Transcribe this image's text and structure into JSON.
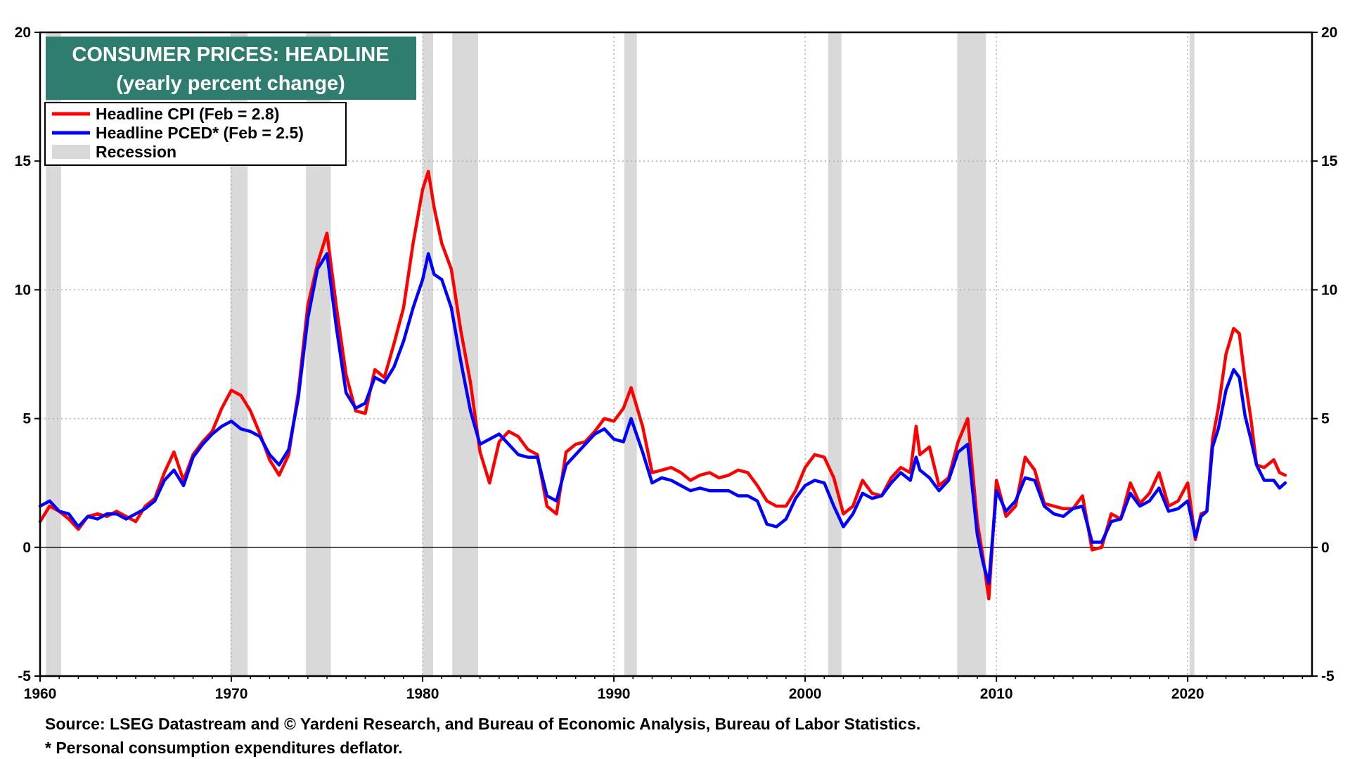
{
  "chart_data": {
    "type": "line",
    "title": "CONSUMER PRICES: HEADLINE",
    "subtitle": "(yearly percent change)",
    "xlim": [
      1960,
      2026.5
    ],
    "ylim": [
      -5,
      20
    ],
    "y_ticks": [
      -5,
      0,
      5,
      10,
      15,
      20
    ],
    "y_tick_labels": [
      "-5",
      "0",
      "5",
      "10",
      "15",
      "20"
    ],
    "x_ticks": [
      1960,
      1970,
      1980,
      1990,
      2000,
      2010,
      2020
    ],
    "x_tick_labels": [
      "1960",
      "1970",
      "1980",
      "1990",
      "2000",
      "2010",
      "2020"
    ],
    "grid": true,
    "zero_line": true,
    "legend_position": "top-left",
    "legend": [
      {
        "label": "Headline CPI (Feb = 2.8)",
        "color": "#ff0000",
        "kind": "line"
      },
      {
        "label": "Headline PCED* (Feb = 2.5)",
        "color": "#0000ff",
        "kind": "line"
      },
      {
        "label": "Recession",
        "color": "#d9d9d9",
        "kind": "patch"
      }
    ],
    "recessions": [
      [
        1960.3,
        1961.1
      ],
      [
        1969.95,
        1970.85
      ],
      [
        1973.9,
        1975.2
      ],
      [
        1980.0,
        1980.55
      ],
      [
        1981.55,
        1982.9
      ],
      [
        1990.55,
        1991.2
      ],
      [
        2001.2,
        2001.9
      ],
      [
        2007.95,
        2009.45
      ],
      [
        2020.1,
        2020.35
      ]
    ],
    "series": [
      {
        "name": "Headline CPI",
        "color": "#ff0000",
        "x": [
          1960.0,
          1960.5,
          1961.0,
          1961.5,
          1962.0,
          1962.5,
          1963.0,
          1963.5,
          1964.0,
          1964.5,
          1965.0,
          1965.5,
          1966.0,
          1966.5,
          1967.0,
          1967.5,
          1968.0,
          1968.5,
          1969.0,
          1969.5,
          1970.0,
          1970.5,
          1971.0,
          1971.5,
          1972.0,
          1972.5,
          1973.0,
          1973.5,
          1974.0,
          1974.5,
          1975.0,
          1975.5,
          1976.0,
          1976.5,
          1977.0,
          1977.5,
          1978.0,
          1978.5,
          1979.0,
          1979.5,
          1980.0,
          1980.3,
          1980.6,
          1981.0,
          1981.5,
          1982.0,
          1982.5,
          1983.0,
          1983.5,
          1984.0,
          1984.5,
          1985.0,
          1985.5,
          1986.0,
          1986.5,
          1987.0,
          1987.5,
          1988.0,
          1988.5,
          1989.0,
          1989.5,
          1990.0,
          1990.5,
          1990.9,
          1991.5,
          1992.0,
          1992.5,
          1993.0,
          1993.5,
          1994.0,
          1994.5,
          1995.0,
          1995.5,
          1996.0,
          1996.5,
          1997.0,
          1997.5,
          1998.0,
          1998.5,
          1999.0,
          1999.5,
          2000.0,
          2000.5,
          2001.0,
          2001.5,
          2002.0,
          2002.5,
          2003.0,
          2003.5,
          2004.0,
          2004.5,
          2005.0,
          2005.5,
          2005.8,
          2006.0,
          2006.5,
          2007.0,
          2007.5,
          2008.0,
          2008.5,
          2009.0,
          2009.3,
          2009.6,
          2010.0,
          2010.5,
          2011.0,
          2011.5,
          2012.0,
          2012.5,
          2013.0,
          2013.5,
          2014.0,
          2014.5,
          2015.0,
          2015.5,
          2016.0,
          2016.5,
          2017.0,
          2017.5,
          2018.0,
          2018.5,
          2019.0,
          2019.5,
          2020.0,
          2020.4,
          2020.7,
          2021.0,
          2021.3,
          2021.6,
          2022.0,
          2022.4,
          2022.7,
          2023.0,
          2023.3,
          2023.6,
          2024.0,
          2024.5,
          2024.8,
          2025.1
        ],
        "y": [
          1.0,
          1.6,
          1.4,
          1.1,
          0.7,
          1.2,
          1.3,
          1.2,
          1.4,
          1.2,
          1.0,
          1.6,
          1.9,
          2.9,
          3.7,
          2.6,
          3.6,
          4.1,
          4.5,
          5.4,
          6.1,
          5.9,
          5.3,
          4.4,
          3.4,
          2.8,
          3.6,
          6.0,
          9.4,
          11.0,
          12.2,
          9.3,
          6.7,
          5.3,
          5.2,
          6.9,
          6.6,
          7.9,
          9.3,
          11.8,
          13.9,
          14.6,
          13.2,
          11.8,
          10.8,
          8.4,
          6.4,
          3.7,
          2.5,
          4.1,
          4.5,
          4.3,
          3.8,
          3.6,
          1.6,
          1.3,
          3.7,
          4.0,
          4.1,
          4.5,
          5.0,
          4.9,
          5.4,
          6.2,
          4.7,
          2.9,
          3.0,
          3.1,
          2.9,
          2.6,
          2.8,
          2.9,
          2.7,
          2.8,
          3.0,
          2.9,
          2.4,
          1.8,
          1.6,
          1.6,
          2.2,
          3.1,
          3.6,
          3.5,
          2.7,
          1.3,
          1.6,
          2.6,
          2.1,
          2.0,
          2.7,
          3.1,
          2.9,
          4.7,
          3.6,
          3.9,
          2.4,
          2.7,
          4.1,
          5.0,
          1.0,
          -0.4,
          -2.0,
          2.6,
          1.2,
          1.6,
          3.5,
          3.0,
          1.7,
          1.6,
          1.5,
          1.5,
          2.0,
          -0.1,
          0.0,
          1.3,
          1.1,
          2.5,
          1.7,
          2.1,
          2.9,
          1.6,
          1.8,
          2.5,
          0.3,
          1.3,
          1.4,
          4.2,
          5.4,
          7.5,
          8.5,
          8.3,
          6.5,
          5.0,
          3.2,
          3.1,
          3.4,
          2.9,
          2.8
        ]
      },
      {
        "name": "Headline PCED",
        "color": "#0000ff",
        "x": [
          1960.0,
          1960.5,
          1961.0,
          1961.5,
          1962.0,
          1962.5,
          1963.0,
          1963.5,
          1964.0,
          1964.5,
          1965.0,
          1965.5,
          1966.0,
          1966.5,
          1967.0,
          1967.5,
          1968.0,
          1968.5,
          1969.0,
          1969.5,
          1970.0,
          1970.5,
          1971.0,
          1971.5,
          1972.0,
          1972.5,
          1973.0,
          1973.5,
          1974.0,
          1974.5,
          1975.0,
          1975.5,
          1976.0,
          1976.5,
          1977.0,
          1977.5,
          1978.0,
          1978.5,
          1979.0,
          1979.5,
          1980.0,
          1980.3,
          1980.6,
          1981.0,
          1981.5,
          1982.0,
          1982.5,
          1983.0,
          1983.5,
          1984.0,
          1984.5,
          1985.0,
          1985.5,
          1986.0,
          1986.5,
          1987.0,
          1987.5,
          1988.0,
          1988.5,
          1989.0,
          1989.5,
          1990.0,
          1990.5,
          1990.9,
          1991.5,
          1992.0,
          1992.5,
          1993.0,
          1993.5,
          1994.0,
          1994.5,
          1995.0,
          1995.5,
          1996.0,
          1996.5,
          1997.0,
          1997.5,
          1998.0,
          1998.5,
          1999.0,
          1999.5,
          2000.0,
          2000.5,
          2001.0,
          2001.5,
          2002.0,
          2002.5,
          2003.0,
          2003.5,
          2004.0,
          2004.5,
          2005.0,
          2005.5,
          2005.8,
          2006.0,
          2006.5,
          2007.0,
          2007.5,
          2008.0,
          2008.5,
          2009.0,
          2009.3,
          2009.6,
          2010.0,
          2010.5,
          2011.0,
          2011.5,
          2012.0,
          2012.5,
          2013.0,
          2013.5,
          2014.0,
          2014.5,
          2015.0,
          2015.5,
          2016.0,
          2016.5,
          2017.0,
          2017.5,
          2018.0,
          2018.5,
          2019.0,
          2019.5,
          2020.0,
          2020.4,
          2020.7,
          2021.0,
          2021.3,
          2021.6,
          2022.0,
          2022.4,
          2022.7,
          2023.0,
          2023.3,
          2023.6,
          2024.0,
          2024.5,
          2024.8,
          2025.1
        ],
        "y": [
          1.6,
          1.8,
          1.4,
          1.3,
          0.8,
          1.2,
          1.1,
          1.3,
          1.3,
          1.1,
          1.3,
          1.5,
          1.8,
          2.6,
          3.0,
          2.4,
          3.5,
          4.0,
          4.4,
          4.7,
          4.9,
          4.6,
          4.5,
          4.3,
          3.6,
          3.2,
          3.8,
          5.8,
          8.9,
          10.8,
          11.4,
          8.5,
          6.0,
          5.4,
          5.6,
          6.6,
          6.4,
          7.0,
          8.0,
          9.3,
          10.4,
          11.4,
          10.6,
          10.4,
          9.3,
          7.2,
          5.3,
          4.0,
          4.2,
          4.4,
          4.0,
          3.6,
          3.5,
          3.5,
          2.0,
          1.8,
          3.2,
          3.6,
          4.0,
          4.4,
          4.6,
          4.2,
          4.1,
          5.0,
          3.7,
          2.5,
          2.7,
          2.6,
          2.4,
          2.2,
          2.3,
          2.2,
          2.2,
          2.2,
          2.0,
          2.0,
          1.8,
          0.9,
          0.8,
          1.1,
          1.9,
          2.4,
          2.6,
          2.5,
          1.6,
          0.8,
          1.3,
          2.1,
          1.9,
          2.0,
          2.5,
          2.9,
          2.6,
          3.5,
          3.0,
          2.7,
          2.2,
          2.6,
          3.7,
          4.0,
          0.5,
          -0.6,
          -1.4,
          2.2,
          1.4,
          1.8,
          2.7,
          2.6,
          1.6,
          1.3,
          1.2,
          1.5,
          1.6,
          0.2,
          0.2,
          1.0,
          1.1,
          2.1,
          1.6,
          1.8,
          2.3,
          1.4,
          1.5,
          1.8,
          0.4,
          1.2,
          1.4,
          3.9,
          4.6,
          6.1,
          6.9,
          6.6,
          5.1,
          4.2,
          3.2,
          2.6,
          2.6,
          2.3,
          2.5
        ]
      }
    ]
  },
  "footer": {
    "source": "Source: LSEG Datastream and © Yardeni Research, and Bureau of Economic Analysis, Bureau of Labor Statistics.",
    "footnote": "* Personal consumption expenditures deflator."
  },
  "colors": {
    "title_background": "#2e7d6e",
    "grid": "#b0b0b0",
    "recession": "#d9d9d9"
  }
}
